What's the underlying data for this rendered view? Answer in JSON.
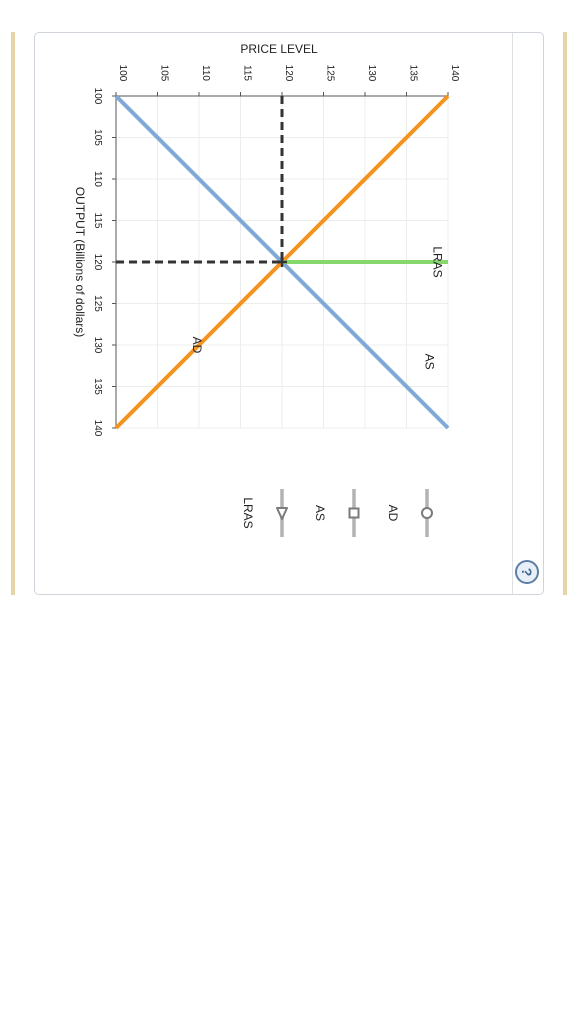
{
  "chart_data": {
    "type": "line",
    "orientation": "rotated-90-clockwise",
    "price_axis": {
      "label": "PRICE LEVEL",
      "range": [
        100,
        140
      ],
      "ticks": [
        100,
        105,
        110,
        115,
        120,
        125,
        130,
        135,
        140
      ]
    },
    "output_axis": {
      "label": "OUTPUT (Billions of dollars)",
      "range": [
        100,
        140
      ],
      "ticks": [
        100,
        105,
        110,
        115,
        120,
        125,
        130,
        135,
        140
      ]
    },
    "series": [
      {
        "name": "AD",
        "color": "#f5931e",
        "points": [
          [
            100,
            140
          ],
          [
            140,
            100
          ]
        ]
      },
      {
        "name": "AS",
        "color": "#7fa9d6",
        "points": [
          [
            100,
            100
          ],
          [
            140,
            140
          ]
        ]
      },
      {
        "name": "LRAS",
        "color": "#86d86c",
        "points": [
          [
            120,
            120
          ],
          [
            120,
            140
          ]
        ]
      }
    ],
    "equilibrium": {
      "output": 120,
      "price": 120
    },
    "curve_labels": [
      {
        "text": "AD",
        "output": 130,
        "price": 110
      },
      {
        "text": "AS",
        "output": 132,
        "price": 138
      },
      {
        "text": "LRAS",
        "output": 120,
        "price": 139
      }
    ],
    "grid": true
  },
  "tools": [
    {
      "label": "AD",
      "marker": "circle",
      "color": "#7a7a7a"
    },
    {
      "label": "AS",
      "marker": "square",
      "color": "#7a7a7a"
    },
    {
      "label": "LRAS",
      "marker": "triangle",
      "color": "#7a7a7a"
    }
  ],
  "help_icon": "question-icon",
  "colors": {
    "panel_border": "#cfd4da",
    "side_bar": "#e6d3a6",
    "grid": "#ececec",
    "dashed": "#333333"
  }
}
